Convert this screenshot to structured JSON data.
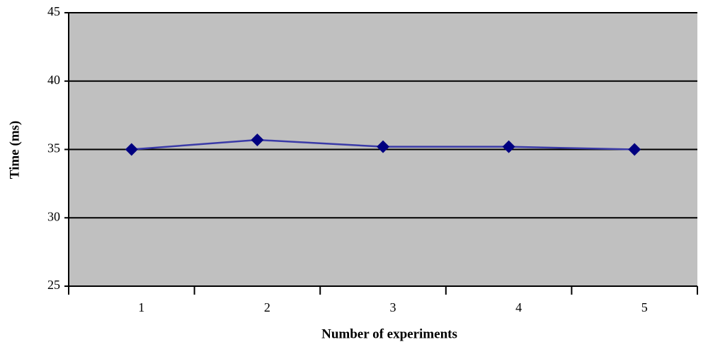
{
  "chart_data": {
    "type": "line",
    "x_label": "Number of experiments",
    "y_label": "Time (ms)",
    "categories": [
      "1",
      "2",
      "3",
      "4",
      "5"
    ],
    "values": [
      35.0,
      35.7,
      35.2,
      35.2,
      35.0
    ],
    "color": "#000080",
    "line_color": "#3a3aa8",
    "plot_background": "#c0c0c0",
    "ylim": [
      25,
      45
    ],
    "yticks": [
      25,
      30,
      35,
      40,
      45
    ],
    "grid": true
  }
}
